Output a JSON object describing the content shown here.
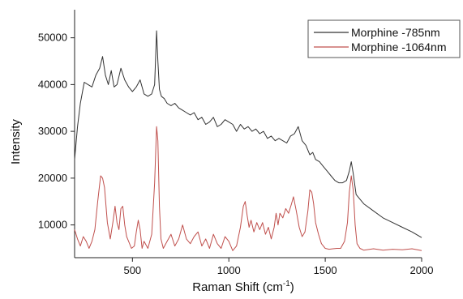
{
  "chart_data": {
    "type": "line",
    "xlabel": "Raman Shift (cm",
    "xlabel_sup": "-1",
    "xlabel_tail": ")",
    "ylabel": "Intensity",
    "xlim": [
      200,
      2000
    ],
    "ylim": [
      3000,
      56000
    ],
    "xticks": [
      500,
      1000,
      1500,
      2000
    ],
    "yticks": [
      10000,
      20000,
      30000,
      40000,
      50000
    ],
    "grid": false,
    "legend_position": "top-right",
    "series": [
      {
        "name": "Morphine -785nm",
        "color": "#333333",
        "x": [
          200,
          215,
          230,
          250,
          270,
          290,
          310,
          330,
          345,
          360,
          375,
          390,
          405,
          420,
          440,
          460,
          480,
          500,
          520,
          540,
          560,
          580,
          600,
          615,
          625,
          632,
          640,
          650,
          665,
          680,
          700,
          720,
          740,
          760,
          780,
          800,
          820,
          840,
          860,
          880,
          900,
          920,
          940,
          960,
          980,
          1000,
          1020,
          1040,
          1060,
          1080,
          1100,
          1120,
          1140,
          1160,
          1180,
          1200,
          1220,
          1240,
          1260,
          1280,
          1300,
          1320,
          1340,
          1360,
          1380,
          1400,
          1420,
          1435,
          1450,
          1470,
          1490,
          1510,
          1530,
          1550,
          1570,
          1590,
          1610,
          1625,
          1635,
          1645,
          1660,
          1680,
          1700,
          1750,
          1800,
          1850,
          1900,
          1950,
          2000
        ],
        "y": [
          24000,
          31000,
          36000,
          40500,
          40000,
          39500,
          42000,
          43500,
          46000,
          42000,
          40000,
          43000,
          39500,
          40000,
          43500,
          41000,
          39500,
          38500,
          39500,
          41000,
          38000,
          37500,
          38000,
          40000,
          51500,
          45000,
          39000,
          37500,
          37000,
          36000,
          35500,
          36000,
          35000,
          34500,
          34000,
          33500,
          34000,
          32500,
          33000,
          31500,
          32000,
          33000,
          31000,
          31500,
          32500,
          32000,
          31500,
          30000,
          31500,
          30500,
          31000,
          30000,
          30500,
          29500,
          30000,
          28500,
          29000,
          28000,
          28500,
          28000,
          27500,
          29000,
          29500,
          31000,
          28000,
          27000,
          25000,
          25500,
          24000,
          23500,
          22500,
          21500,
          20500,
          19500,
          19000,
          19000,
          19500,
          21500,
          23500,
          21000,
          16500,
          15500,
          14500,
          13000,
          11500,
          10500,
          9500,
          8500,
          7300
        ]
      },
      {
        "name": "Morphine -1064nm",
        "color": "#c0504d",
        "x": [
          200,
          215,
          230,
          245,
          260,
          275,
          290,
          305,
          320,
          335,
          345,
          355,
          370,
          385,
          400,
          410,
          420,
          430,
          440,
          450,
          460,
          470,
          480,
          495,
          510,
          520,
          530,
          540,
          550,
          560,
          580,
          600,
          615,
          625,
          632,
          640,
          648,
          660,
          680,
          700,
          720,
          740,
          760,
          780,
          800,
          820,
          840,
          860,
          880,
          900,
          920,
          940,
          960,
          980,
          1000,
          1020,
          1040,
          1060,
          1075,
          1085,
          1095,
          1105,
          1115,
          1130,
          1145,
          1160,
          1175,
          1190,
          1205,
          1220,
          1235,
          1245,
          1255,
          1265,
          1280,
          1295,
          1310,
          1325,
          1335,
          1350,
          1365,
          1380,
          1395,
          1410,
          1420,
          1430,
          1440,
          1450,
          1465,
          1480,
          1500,
          1520,
          1540,
          1560,
          1580,
          1600,
          1615,
          1625,
          1635,
          1645,
          1655,
          1665,
          1680,
          1700,
          1750,
          1800,
          1850,
          1900,
          1950,
          2000
        ],
        "y": [
          9000,
          7000,
          5500,
          7500,
          6500,
          5000,
          6500,
          9000,
          15000,
          20500,
          20000,
          18000,
          10500,
          7000,
          11000,
          14000,
          10500,
          9000,
          13500,
          14000,
          10000,
          7500,
          6500,
          5000,
          5500,
          8500,
          11000,
          9000,
          5000,
          6500,
          5000,
          8000,
          19000,
          31000,
          28000,
          14000,
          7000,
          5000,
          6500,
          8000,
          5500,
          7000,
          10000,
          7000,
          6000,
          7500,
          8500,
          5500,
          7000,
          5000,
          8000,
          6000,
          5000,
          7500,
          6500,
          4500,
          5500,
          9500,
          14000,
          15000,
          12000,
          9500,
          11000,
          8500,
          10500,
          9000,
          10500,
          8000,
          9500,
          7000,
          9500,
          12500,
          10000,
          12500,
          11500,
          13500,
          12500,
          14500,
          16000,
          13000,
          9500,
          7500,
          8500,
          13000,
          17500,
          17000,
          14500,
          10500,
          8000,
          6000,
          5000,
          4800,
          4900,
          5000,
          5000,
          6500,
          10500,
          17000,
          20500,
          17500,
          10000,
          6000,
          5000,
          4600,
          4900,
          4600,
          4800,
          4700,
          4900,
          4500
        ]
      }
    ]
  }
}
